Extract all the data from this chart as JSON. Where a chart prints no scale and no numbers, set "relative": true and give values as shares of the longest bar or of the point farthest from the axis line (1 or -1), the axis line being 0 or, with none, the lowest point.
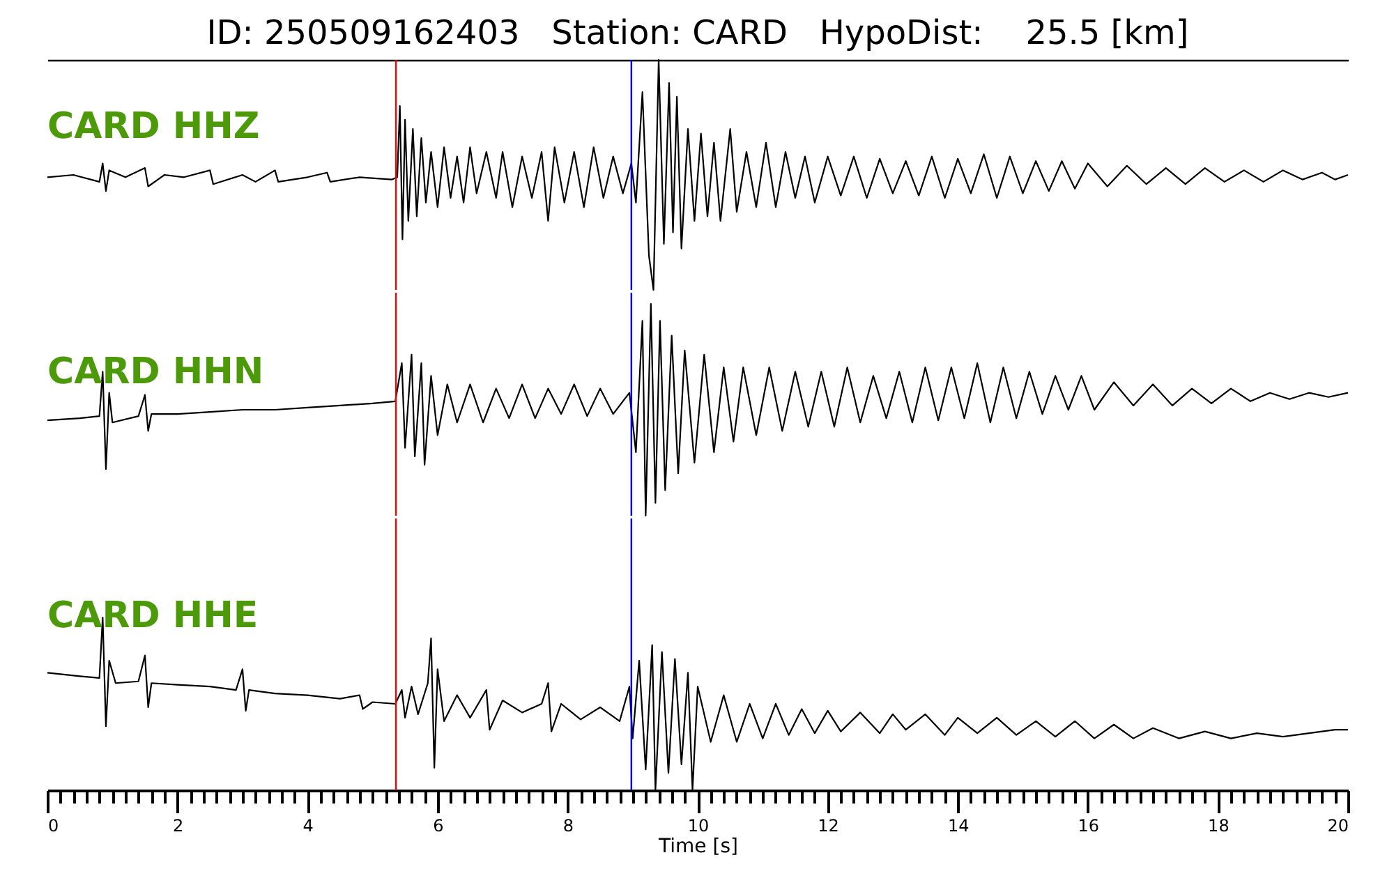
{
  "chart_data": [
    {
      "type": "line",
      "title": "ID: 250509162403   Station: CARD   HypoDist:    25.5 [km]",
      "relative": true,
      "xlim": [
        0,
        20
      ],
      "tick_labels": false,
      "ref_lines": [
        {
          "axis": "x",
          "value": 5.36,
          "color": "#ff0000"
        },
        {
          "axis": "x",
          "value": 8.98,
          "color": "#0000ff"
        }
      ],
      "series": [
        {
          "name": "CARD HHZ",
          "color": "#000000",
          "x": [
            0,
            0.4,
            0.8,
            0.85,
            0.9,
            0.95,
            1.2,
            1.5,
            1.55,
            1.8,
            2.1,
            2.5,
            2.55,
            3.0,
            3.2,
            3.5,
            3.55,
            4.0,
            4.3,
            4.35,
            4.8,
            5.3,
            5.38,
            5.42,
            5.46,
            5.5,
            5.55,
            5.62,
            5.68,
            5.75,
            5.82,
            5.9,
            6.0,
            6.1,
            6.2,
            6.3,
            6.4,
            6.5,
            6.6,
            6.75,
            6.9,
            7.0,
            7.15,
            7.3,
            7.45,
            7.6,
            7.7,
            7.8,
            7.95,
            8.1,
            8.25,
            8.4,
            8.55,
            8.7,
            8.85,
            8.98,
            9.05,
            9.15,
            9.25,
            9.32,
            9.4,
            9.48,
            9.56,
            9.62,
            9.68,
            9.75,
            9.85,
            9.95,
            10.05,
            10.15,
            10.25,
            10.35,
            10.5,
            10.6,
            10.75,
            10.9,
            11.05,
            11.2,
            11.35,
            11.5,
            11.65,
            11.8,
            12.0,
            12.2,
            12.4,
            12.6,
            12.8,
            13.0,
            13.2,
            13.4,
            13.6,
            13.8,
            14.0,
            14.2,
            14.4,
            14.6,
            14.8,
            15.0,
            15.2,
            15.4,
            15.6,
            15.8,
            16.0,
            16.3,
            16.6,
            16.9,
            17.2,
            17.5,
            17.8,
            18.1,
            18.4,
            18.7,
            19.0,
            19.3,
            19.6,
            19.8,
            20.0
          ],
          "values": [
            0.49,
            0.5,
            0.47,
            0.55,
            0.43,
            0.52,
            0.49,
            0.53,
            0.45,
            0.5,
            0.49,
            0.52,
            0.46,
            0.5,
            0.47,
            0.52,
            0.47,
            0.49,
            0.51,
            0.47,
            0.49,
            0.48,
            0.49,
            0.8,
            0.22,
            0.74,
            0.3,
            0.7,
            0.32,
            0.66,
            0.38,
            0.6,
            0.36,
            0.62,
            0.4,
            0.58,
            0.38,
            0.62,
            0.42,
            0.6,
            0.4,
            0.6,
            0.36,
            0.58,
            0.4,
            0.6,
            0.3,
            0.62,
            0.38,
            0.6,
            0.36,
            0.62,
            0.4,
            0.58,
            0.42,
            0.55,
            0.38,
            0.86,
            0.15,
            0.0,
            1.0,
            0.2,
            0.9,
            0.25,
            0.84,
            0.18,
            0.7,
            0.3,
            0.68,
            0.32,
            0.64,
            0.3,
            0.7,
            0.34,
            0.6,
            0.36,
            0.64,
            0.36,
            0.6,
            0.4,
            0.58,
            0.38,
            0.58,
            0.41,
            0.58,
            0.4,
            0.57,
            0.42,
            0.56,
            0.41,
            0.58,
            0.4,
            0.57,
            0.42,
            0.59,
            0.4,
            0.58,
            0.42,
            0.56,
            0.43,
            0.56,
            0.44,
            0.55,
            0.45,
            0.54,
            0.46,
            0.53,
            0.46,
            0.53,
            0.47,
            0.52,
            0.47,
            0.52,
            0.48,
            0.51,
            0.48,
            0.5
          ]
        }
      ]
    },
    {
      "type": "line",
      "relative": true,
      "xlim": [
        0,
        20
      ],
      "tick_labels": false,
      "ref_lines": [
        {
          "axis": "x",
          "value": 5.36,
          "color": "#ff0000"
        },
        {
          "axis": "x",
          "value": 8.98,
          "color": "#0000ff"
        }
      ],
      "series": [
        {
          "name": "CARD HHN",
          "color": "#000000",
          "x": [
            0,
            0.5,
            0.8,
            0.85,
            0.9,
            0.95,
            1.0,
            1.4,
            1.5,
            1.55,
            1.6,
            2.0,
            2.5,
            3.0,
            3.5,
            4.0,
            4.5,
            5.0,
            5.35,
            5.45,
            5.5,
            5.6,
            5.65,
            5.75,
            5.8,
            5.9,
            6.0,
            6.15,
            6.3,
            6.5,
            6.7,
            6.9,
            7.1,
            7.3,
            7.5,
            7.7,
            7.9,
            8.1,
            8.3,
            8.5,
            8.7,
            8.95,
            9.05,
            9.15,
            9.2,
            9.28,
            9.35,
            9.42,
            9.5,
            9.6,
            9.7,
            9.8,
            9.95,
            10.1,
            10.25,
            10.4,
            10.55,
            10.7,
            10.9,
            11.1,
            11.3,
            11.5,
            11.7,
            11.9,
            12.1,
            12.3,
            12.5,
            12.7,
            12.9,
            13.1,
            13.3,
            13.5,
            13.7,
            13.9,
            14.1,
            14.3,
            14.5,
            14.7,
            14.9,
            15.1,
            15.3,
            15.5,
            15.7,
            15.9,
            16.1,
            16.4,
            16.7,
            17.0,
            17.3,
            17.6,
            17.9,
            18.2,
            18.5,
            18.8,
            19.1,
            19.4,
            19.7,
            20.0
          ],
          "values": [
            0.45,
            0.46,
            0.47,
            0.68,
            0.22,
            0.58,
            0.44,
            0.47,
            0.57,
            0.4,
            0.48,
            0.48,
            0.49,
            0.5,
            0.5,
            0.51,
            0.52,
            0.53,
            0.54,
            0.72,
            0.32,
            0.76,
            0.28,
            0.72,
            0.24,
            0.66,
            0.38,
            0.62,
            0.44,
            0.62,
            0.44,
            0.6,
            0.46,
            0.62,
            0.46,
            0.6,
            0.48,
            0.62,
            0.47,
            0.6,
            0.48,
            0.58,
            0.3,
            0.92,
            0.0,
            1.0,
            0.06,
            0.92,
            0.12,
            0.85,
            0.2,
            0.78,
            0.25,
            0.76,
            0.3,
            0.7,
            0.35,
            0.7,
            0.38,
            0.7,
            0.4,
            0.68,
            0.42,
            0.68,
            0.42,
            0.7,
            0.44,
            0.66,
            0.46,
            0.68,
            0.44,
            0.7,
            0.45,
            0.7,
            0.46,
            0.72,
            0.44,
            0.7,
            0.46,
            0.68,
            0.48,
            0.66,
            0.5,
            0.66,
            0.5,
            0.63,
            0.52,
            0.62,
            0.52,
            0.6,
            0.53,
            0.6,
            0.54,
            0.58,
            0.55,
            0.58,
            0.56,
            0.58
          ]
        }
      ]
    },
    {
      "type": "line",
      "relative": true,
      "xlabel": "Time [s]",
      "xlim": [
        0,
        20
      ],
      "xticks": [
        0,
        {
          "value": 0.2,
          "label": null
        },
        {
          "value": 0.4,
          "label": null
        },
        {
          "value": 0.6,
          "label": null
        },
        {
          "value": 0.8,
          "label": null
        },
        {
          "value": 1,
          "label": null
        },
        {
          "value": 1.2,
          "label": null
        },
        {
          "value": 1.4,
          "label": null
        },
        {
          "value": 1.6,
          "label": null
        },
        {
          "value": 1.8,
          "label": null
        },
        2,
        {
          "value": 2.2,
          "label": null
        },
        {
          "value": 2.4,
          "label": null
        },
        {
          "value": 2.6,
          "label": null
        },
        {
          "value": 2.8,
          "label": null
        },
        {
          "value": 3,
          "label": null
        },
        {
          "value": 3.2,
          "label": null
        },
        {
          "value": 3.4,
          "label": null
        },
        {
          "value": 3.6,
          "label": null
        },
        {
          "value": 3.8,
          "label": null
        },
        4,
        {
          "value": 4.2,
          "label": null
        },
        {
          "value": 4.4,
          "label": null
        },
        {
          "value": 4.6,
          "label": null
        },
        {
          "value": 4.8,
          "label": null
        },
        {
          "value": 5,
          "label": null
        },
        {
          "value": 5.2,
          "label": null
        },
        {
          "value": 5.4,
          "label": null
        },
        {
          "value": 5.6,
          "label": null
        },
        {
          "value": 5.8,
          "label": null
        },
        6,
        {
          "value": 6.2,
          "label": null
        },
        {
          "value": 6.4,
          "label": null
        },
        {
          "value": 6.6,
          "label": null
        },
        {
          "value": 6.8,
          "label": null
        },
        {
          "value": 7,
          "label": null
        },
        {
          "value": 7.2,
          "label": null
        },
        {
          "value": 7.4,
          "label": null
        },
        {
          "value": 7.6,
          "label": null
        },
        {
          "value": 7.8,
          "label": null
        },
        8,
        {
          "value": 8.2,
          "label": null
        },
        {
          "value": 8.4,
          "label": null
        },
        {
          "value": 8.6,
          "label": null
        },
        {
          "value": 8.8,
          "label": null
        },
        {
          "value": 9,
          "label": null
        },
        {
          "value": 9.2,
          "label": null
        },
        {
          "value": 9.4,
          "label": null
        },
        {
          "value": 9.6,
          "label": null
        },
        {
          "value": 9.8,
          "label": null
        },
        10,
        {
          "value": 10.2,
          "label": null
        },
        {
          "value": 10.4,
          "label": null
        },
        {
          "value": 10.6,
          "label": null
        },
        {
          "value": 10.8,
          "label": null
        },
        {
          "value": 11,
          "label": null
        },
        {
          "value": 11.2,
          "label": null
        },
        {
          "value": 11.4,
          "label": null
        },
        {
          "value": 11.6,
          "label": null
        },
        {
          "value": 11.8,
          "label": null
        },
        12,
        {
          "value": 12.2,
          "label": null
        },
        {
          "value": 12.4,
          "label": null
        },
        {
          "value": 12.6,
          "label": null
        },
        {
          "value": 12.8,
          "label": null
        },
        {
          "value": 13,
          "label": null
        },
        {
          "value": 13.2,
          "label": null
        },
        {
          "value": 13.4,
          "label": null
        },
        {
          "value": 13.6,
          "label": null
        },
        {
          "value": 13.8,
          "label": null
        },
        14,
        {
          "value": 14.2,
          "label": null
        },
        {
          "value": 14.4,
          "label": null
        },
        {
          "value": 14.6,
          "label": null
        },
        {
          "value": 14.8,
          "label": null
        },
        {
          "value": 15,
          "label": null
        },
        {
          "value": 15.2,
          "label": null
        },
        {
          "value": 15.4,
          "label": null
        },
        {
          "value": 15.6,
          "label": null
        },
        {
          "value": 15.8,
          "label": null
        },
        16,
        {
          "value": 16.2,
          "label": null
        },
        {
          "value": 16.4,
          "label": null
        },
        {
          "value": 16.6,
          "label": null
        },
        {
          "value": 16.8,
          "label": null
        },
        {
          "value": 17,
          "label": null
        },
        {
          "value": 17.2,
          "label": null
        },
        {
          "value": 17.4,
          "label": null
        },
        {
          "value": 17.6,
          "label": null
        },
        {
          "value": 17.8,
          "label": null
        },
        18,
        {
          "value": 18.2,
          "label": null
        },
        {
          "value": 18.4,
          "label": null
        },
        {
          "value": 18.6,
          "label": null
        },
        {
          "value": 18.8,
          "label": null
        },
        {
          "value": 19,
          "label": null
        },
        {
          "value": 19.2,
          "label": null
        },
        {
          "value": 19.4,
          "label": null
        },
        {
          "value": 19.6,
          "label": null
        },
        {
          "value": 19.8,
          "label": null
        },
        20
      ],
      "ref_lines": [
        {
          "axis": "x",
          "value": 5.36,
          "color": "#ff0000"
        },
        {
          "axis": "x",
          "value": 8.98,
          "color": "#0000ff"
        }
      ],
      "series": [
        {
          "name": "CARD HHE",
          "color": "#000000",
          "x": [
            0,
            0.5,
            0.8,
            0.85,
            0.9,
            0.95,
            1.05,
            1.4,
            1.5,
            1.55,
            1.6,
            2.0,
            2.5,
            2.9,
            3.0,
            3.05,
            3.1,
            3.5,
            4.0,
            4.5,
            4.8,
            4.85,
            5.0,
            5.35,
            5.45,
            5.5,
            5.6,
            5.7,
            5.85,
            5.9,
            5.95,
            6.0,
            6.1,
            6.3,
            6.5,
            6.75,
            6.8,
            7.0,
            7.3,
            7.6,
            7.7,
            7.75,
            7.9,
            8.2,
            8.5,
            8.8,
            8.95,
            9.0,
            9.1,
            9.2,
            9.3,
            9.35,
            9.45,
            9.55,
            9.65,
            9.75,
            9.85,
            9.92,
            10.0,
            10.2,
            10.4,
            10.6,
            10.8,
            11.0,
            11.2,
            11.4,
            11.6,
            11.8,
            12.0,
            12.2,
            12.5,
            12.8,
            13.0,
            13.2,
            13.5,
            13.8,
            14.0,
            14.3,
            14.6,
            14.9,
            15.2,
            15.5,
            15.8,
            16.1,
            16.4,
            16.7,
            17.0,
            17.4,
            17.8,
            18.2,
            18.6,
            19.0,
            19.4,
            19.8,
            20.0
          ],
          "values": [
            0.68,
            0.66,
            0.65,
            1.0,
            0.37,
            0.75,
            0.62,
            0.63,
            0.78,
            0.48,
            0.62,
            0.61,
            0.6,
            0.58,
            0.7,
            0.46,
            0.58,
            0.56,
            0.55,
            0.53,
            0.55,
            0.47,
            0.51,
            0.5,
            0.58,
            0.42,
            0.6,
            0.44,
            0.62,
            0.88,
            0.13,
            0.7,
            0.4,
            0.55,
            0.42,
            0.58,
            0.35,
            0.52,
            0.45,
            0.5,
            0.62,
            0.34,
            0.5,
            0.41,
            0.48,
            0.4,
            0.6,
            0.3,
            0.75,
            0.12,
            0.84,
            0.0,
            0.8,
            0.1,
            0.76,
            0.15,
            0.68,
            0.0,
            0.6,
            0.28,
            0.55,
            0.28,
            0.5,
            0.3,
            0.5,
            0.32,
            0.47,
            0.33,
            0.46,
            0.34,
            0.45,
            0.33,
            0.44,
            0.35,
            0.44,
            0.32,
            0.42,
            0.33,
            0.42,
            0.32,
            0.4,
            0.31,
            0.4,
            0.3,
            0.38,
            0.3,
            0.36,
            0.3,
            0.34,
            0.3,
            0.33,
            0.31,
            0.33,
            0.35,
            0.35
          ]
        }
      ]
    }
  ]
}
